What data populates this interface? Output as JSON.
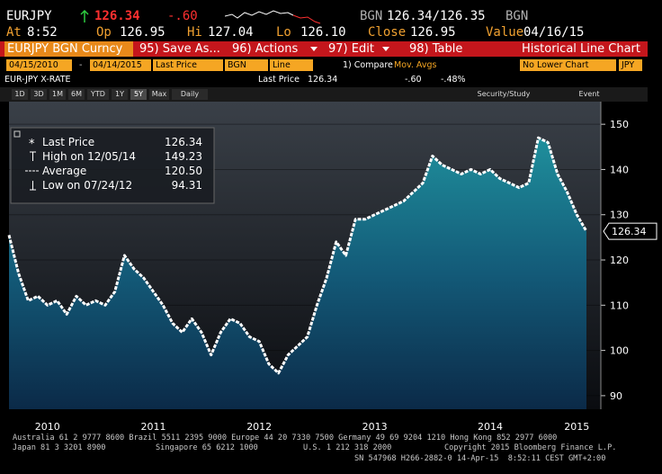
{
  "header": {
    "ticker": "EURJPY",
    "price": "126.34",
    "change": "-.60",
    "bid_label": "BGN",
    "bid_ask": "126.34/126.35",
    "ask_label": "BGN",
    "at_label": "At",
    "at": "8:52",
    "open_label": "Op",
    "open": "126.95",
    "high_label": "Hi",
    "high": "127.04",
    "low_label": "Lo",
    "low": "126.10",
    "close_label": "Close",
    "close": "126.95",
    "value_label": "Value",
    "value_date": "04/16/15"
  },
  "menu": {
    "security": "EURJPY BGN Curncy",
    "items": [
      "95) Save As...",
      "96) Actions",
      "97) Edit",
      "98) Table"
    ],
    "view": "Historical Line Chart"
  },
  "fields": {
    "start": "04/15/2010",
    "dash": "-",
    "end": "04/14/2015",
    "field": "Last Price",
    "source": "BGN",
    "style": "Line",
    "compare": "1) Compare",
    "studies": "Mov. Avgs",
    "lower": "No Lower Chart",
    "currency": "JPY"
  },
  "info": {
    "name": "EUR-JPY X-RATE",
    "last_label": "Last Price",
    "last": "126.34",
    "change": "-.60",
    "pct": "-.48%"
  },
  "periods": [
    "1D",
    "3D",
    "1M",
    "6M",
    "YTD",
    "1Y",
    "5Y",
    "Max",
    "Daily"
  ],
  "tools": [
    "Security/Study",
    "Event"
  ],
  "chart_data": {
    "type": "area",
    "categories": [
      null,
      null,
      null,
      null,
      "2010",
      null,
      null,
      null,
      null,
      null,
      null,
      null,
      null,
      null,
      null,
      "2011",
      null,
      null,
      null,
      null,
      null,
      null,
      null,
      null,
      null,
      null,
      "2012",
      null,
      null,
      null,
      null,
      null,
      null,
      null,
      null,
      null,
      null,
      null,
      "2013",
      null,
      null,
      null,
      null,
      null,
      null,
      null,
      null,
      null,
      null,
      null,
      "2014",
      null,
      null,
      null,
      null,
      null,
      null,
      null,
      null,
      "2015",
      null
    ],
    "series": [
      {
        "name": "Last Price",
        "color": "#ffffff",
        "values": [
          125.5,
          117,
          111,
          112,
          110,
          111,
          108,
          112,
          110,
          111,
          110,
          113,
          121,
          118,
          116,
          113,
          110,
          106,
          104,
          107,
          104,
          99,
          104,
          107,
          106,
          103,
          102,
          97,
          95,
          99,
          101,
          103,
          110,
          116,
          124,
          121,
          129,
          129,
          130,
          131,
          132,
          133,
          135,
          137,
          143,
          141,
          140,
          139,
          140,
          139,
          140,
          138,
          137,
          136,
          137,
          147,
          146,
          139,
          135,
          130,
          126.34
        ]
      }
    ],
    "ylim": [
      87,
      155
    ],
    "yticks": [
      90,
      100,
      110,
      120,
      130,
      140,
      150
    ],
    "grid": true,
    "legend": [
      {
        "label": "Last Price",
        "value": "126.34"
      },
      {
        "label": "High on 12/05/14",
        "value": "149.23"
      },
      {
        "label": "Average",
        "value": "120.50"
      },
      {
        "label": "Low on 07/24/12",
        "value": "94.31"
      }
    ]
  },
  "footer": {
    "line1": "Australia 61 2 9777 8600 Brazil 5511 2395 9000 Europe 44 20 7330 7500 Germany 49 69 9204 1210 Hong Kong 852 2977 6000",
    "line2a": "Japan 81 3 3201 8900",
    "line2b": "Singapore 65 6212 1000",
    "line2c": "U.S. 1 212 318 2000",
    "line2d": "Copyright 2015 Bloomberg Finance L.P.",
    "line3": "SN 547968 H266-2882-0 14-Apr-15  8:52:11 CEST GMT+2:00"
  }
}
